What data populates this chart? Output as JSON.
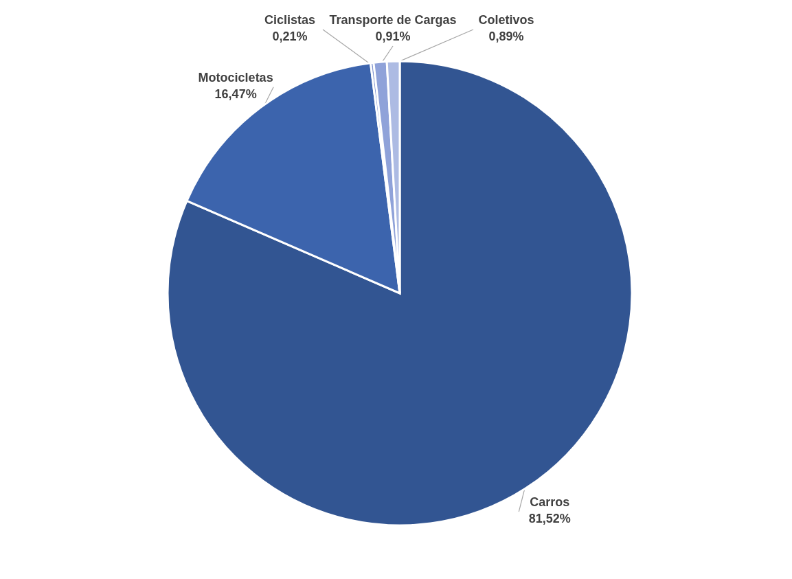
{
  "chart_data": {
    "type": "pie",
    "categories": [
      "Carros",
      "Motocicletas",
      "Ciclistas",
      "Transporte de Cargas",
      "Coletivos"
    ],
    "values": [
      81.52,
      16.47,
      0.21,
      0.91,
      0.89
    ],
    "value_labels": [
      "81,52%",
      "16,47%",
      "0,21%",
      "0,91%",
      "0,89%"
    ],
    "colors": [
      "#325592",
      "#3c64ad",
      "#7f93cf",
      "#8fa2d9",
      "#adbbe3"
    ]
  }
}
